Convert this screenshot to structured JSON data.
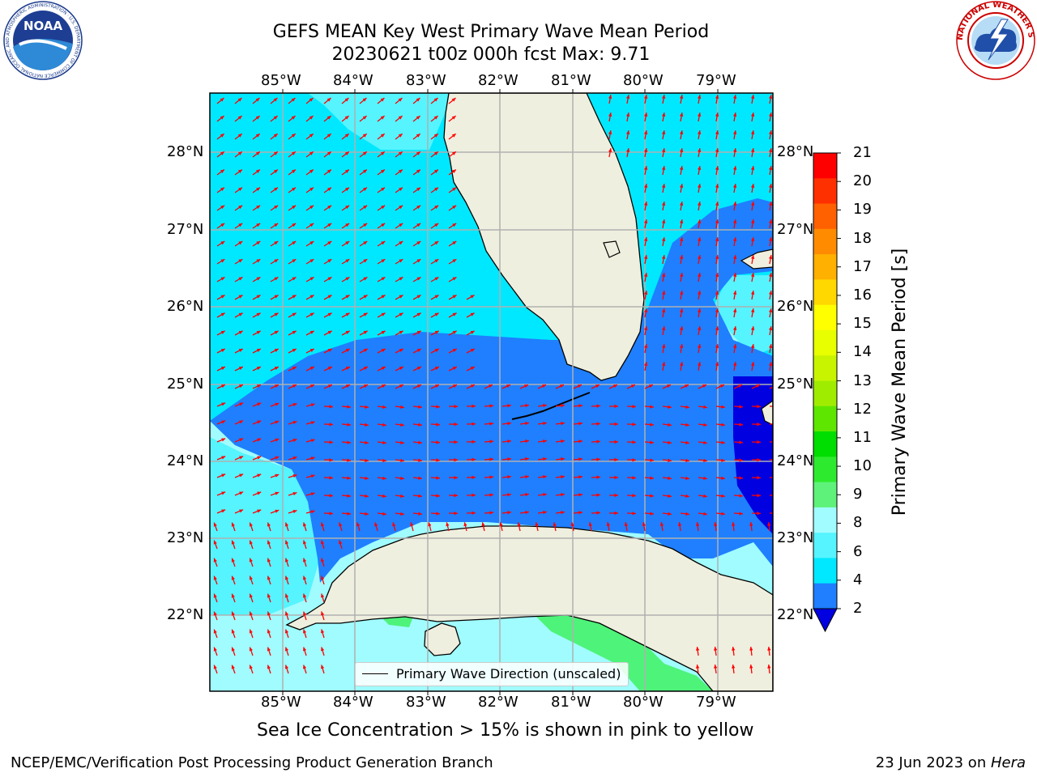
{
  "title": {
    "line1": "GEFS MEAN Key West Primary Wave Mean Period",
    "line2": "20230621 t00z 000h fcst   Max: 9.71"
  },
  "map": {
    "lon_labels": [
      "85°W",
      "84°W",
      "83°W",
      "82°W",
      "81°W",
      "80°W",
      "79°W"
    ],
    "lat_labels": [
      "28°N",
      "27°N",
      "26°N",
      "25°N",
      "24°N",
      "23°N",
      "22°N"
    ],
    "legend_text": "Primary Wave Direction (unscaled)",
    "colors": {
      "land": "#efefdf",
      "wave_2_4": "#1f7fff",
      "wave_below_2": "#0000e0",
      "wave_4_6": "#00e8ff",
      "wave_6_8": "#55f4ff",
      "wave_8_9": "#a0fcff",
      "wave_9_10": "#4ef37a",
      "arrow": "#ff0000",
      "grid": "#b0b0b0"
    }
  },
  "colorbar": {
    "title": "Primary Wave Mean Period [s]",
    "ticks": [
      "21",
      "20",
      "19",
      "18",
      "17",
      "16",
      "15",
      "14",
      "13",
      "12",
      "11",
      "10",
      "9",
      "8",
      "6",
      "4",
      "2"
    ],
    "bands": [
      "#ff0000",
      "#ff3000",
      "#ff6000",
      "#ff8c00",
      "#ffb000",
      "#ffd800",
      "#ffff00",
      "#e8ff00",
      "#c8f400",
      "#a0ec00",
      "#5ee600",
      "#00dd00",
      "#2eea2e",
      "#5ef27a",
      "#a0fcff",
      "#55f4ff",
      "#00e8ff",
      "#1f7fff"
    ],
    "under_color": "#0000e0"
  },
  "note": "Sea Ice Concentration > 15% is shown in pink to yellow",
  "footer": {
    "left": "NCEP/EMC/Verification Post Processing Product Generation Branch",
    "right_date": "23 Jun 2023 on ",
    "right_host": "Hera"
  },
  "logos": {
    "left_text": "NOAA",
    "left_ring_text": "NATIONAL OCEANIC AND ATMOSPHERIC ADMINISTRATION · U.S. DEPARTMENT OF COMMERCE",
    "right_ring_text": "NATIONAL WEATHER SERVICE"
  }
}
